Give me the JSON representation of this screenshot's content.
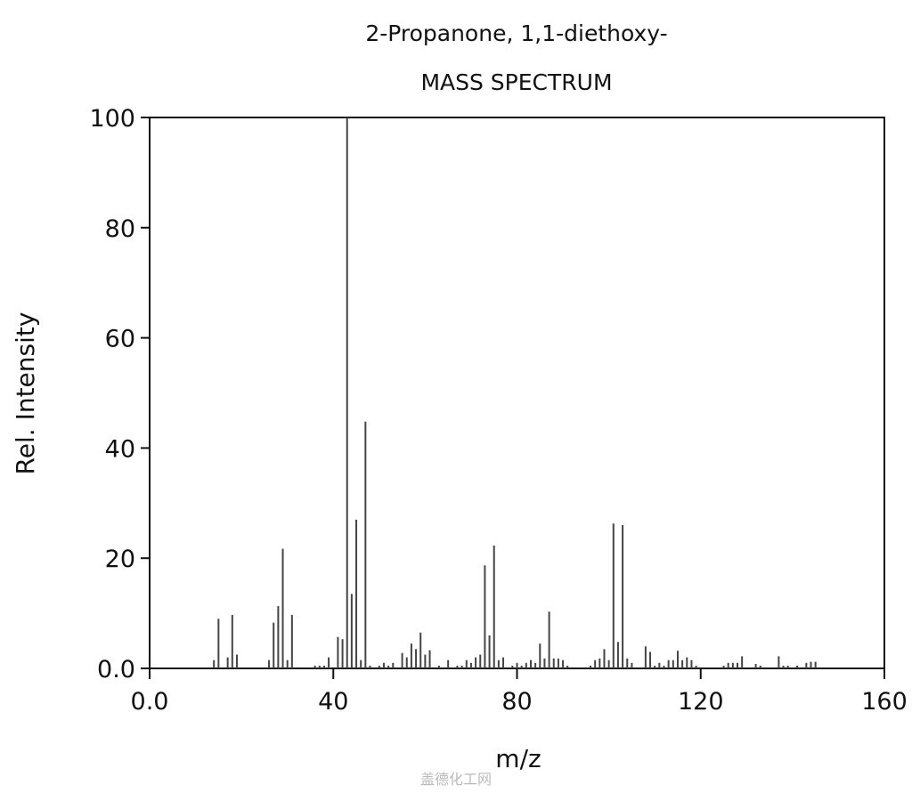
{
  "chart_data": {
    "type": "stem",
    "title": "2-Propanone, 1,1-diethoxy-",
    "subtitle": "MASS SPECTRUM",
    "x_label": "m/z",
    "y_label": "Rel. Intensity",
    "watermark": "盖德化工网",
    "color": "#444444",
    "xlim": [
      0,
      160
    ],
    "xticks": [
      {
        "value": 0,
        "label": "0.0"
      },
      40,
      80,
      120,
      160
    ],
    "ylim": [
      0,
      100
    ],
    "yticks": [
      {
        "value": 0,
        "label": "0.0"
      },
      20,
      40,
      60,
      80,
      100
    ],
    "x": [
      14,
      15,
      17,
      18,
      19,
      26,
      27,
      28,
      29,
      30,
      31,
      36,
      37,
      38,
      39,
      41,
      42,
      43,
      44,
      45,
      46,
      47,
      48,
      50,
      51,
      52,
      53,
      55,
      56,
      57,
      58,
      59,
      60,
      61,
      63,
      65,
      67,
      68,
      69,
      70,
      71,
      72,
      73,
      74,
      75,
      76,
      77,
      79,
      80,
      81,
      82,
      83,
      84,
      85,
      86,
      87,
      88,
      89,
      90,
      91,
      96,
      97,
      98,
      99,
      100,
      101,
      102,
      103,
      104,
      105,
      108,
      109,
      110,
      111,
      112,
      113,
      114,
      115,
      116,
      117,
      118,
      119,
      125,
      126,
      127,
      128,
      129,
      132,
      133,
      137,
      138,
      139,
      141,
      143,
      144,
      145
    ],
    "values": [
      1.5,
      9,
      2,
      9.7,
      2.5,
      1.5,
      8.3,
      11.3,
      21.7,
      1.5,
      9.7,
      0.5,
      0.5,
      0.5,
      2,
      5.7,
      5.3,
      100,
      13.5,
      27,
      1.5,
      44.8,
      0.5,
      0.5,
      1,
      0.5,
      1,
      2.8,
      2,
      4.5,
      3.5,
      6.5,
      2.5,
      3.3,
      0.5,
      1.5,
      0.5,
      0.5,
      1.5,
      1,
      2,
      2.5,
      18.7,
      6,
      22.3,
      1.5,
      2,
      0.5,
      1,
      0.5,
      1,
      1.5,
      1,
      4.5,
      1.8,
      10.3,
      1.8,
      1.8,
      1.5,
      0.5,
      0.5,
      1.5,
      1.8,
      3.5,
      1.5,
      26.3,
      4.8,
      26,
      1.8,
      1,
      4,
      3,
      0.5,
      1,
      0.5,
      1.5,
      1.5,
      3.2,
      1.5,
      2,
      1.5,
      0.5,
      0.5,
      1,
      1,
      1,
      2.2,
      0.8,
      0.5,
      2.2,
      0.5,
      0.5,
      0.5,
      1,
      1.2,
      1.2
    ]
  }
}
